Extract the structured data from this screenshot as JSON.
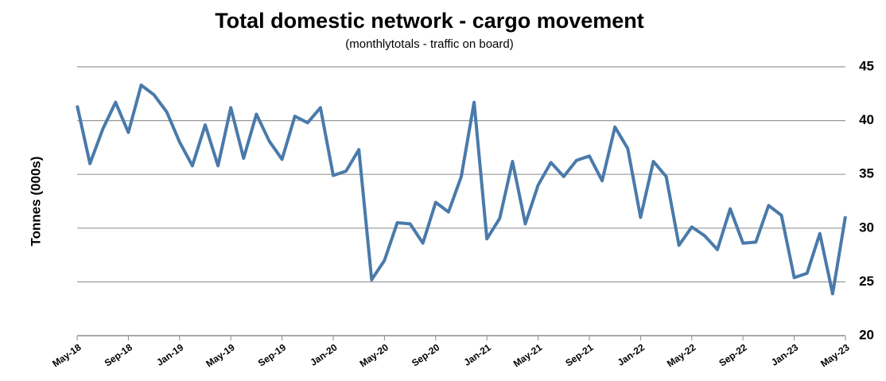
{
  "chart_data": {
    "type": "line",
    "title": "Total domestic network - cargo movement",
    "subtitle": "(monthlytotals - traffic on board)",
    "y_label": "Tonnes (000s)",
    "categories": [
      "May-18",
      null,
      null,
      null,
      "Sep-18",
      null,
      null,
      null,
      "Jan-19",
      null,
      null,
      null,
      "May-19",
      null,
      null,
      null,
      "Sep-19",
      null,
      null,
      null,
      "Jan-20",
      null,
      null,
      null,
      "May-20",
      null,
      null,
      null,
      "Sep-20",
      null,
      null,
      null,
      "Jan-21",
      null,
      null,
      null,
      "May-21",
      null,
      null,
      null,
      "Sep-21",
      null,
      null,
      null,
      "Jan-22",
      null,
      null,
      null,
      "May-22",
      null,
      null,
      null,
      "Sep-22",
      null,
      null,
      null,
      "Jan-23",
      null,
      null,
      null,
      "May-23"
    ],
    "series": [
      {
        "name": "Cargo movement",
        "color": "#4a7aaa",
        "values": [
          41.4,
          36.0,
          39.2,
          41.7,
          38.9,
          43.3,
          42.4,
          40.8,
          38.0,
          35.8,
          39.6,
          35.8,
          41.2,
          36.5,
          40.6,
          38.1,
          36.4,
          40.4,
          39.8,
          41.2,
          34.9,
          35.3,
          37.3,
          25.2,
          27.0,
          30.5,
          30.4,
          28.6,
          32.4,
          31.5,
          34.8,
          41.7,
          29.0,
          30.9,
          36.2,
          30.4,
          34.0,
          36.1,
          34.8,
          36.3,
          36.7,
          34.4,
          39.4,
          37.4,
          31.0,
          36.2,
          34.8,
          28.4,
          30.1,
          29.3,
          28.0,
          31.8,
          28.6,
          28.7,
          32.1,
          31.2,
          25.4,
          25.8,
          29.5,
          23.9,
          31.1
        ]
      }
    ],
    "ylim": [
      20,
      45
    ],
    "yticks": [
      20,
      25,
      30,
      35,
      40,
      45
    ],
    "grid": true
  }
}
